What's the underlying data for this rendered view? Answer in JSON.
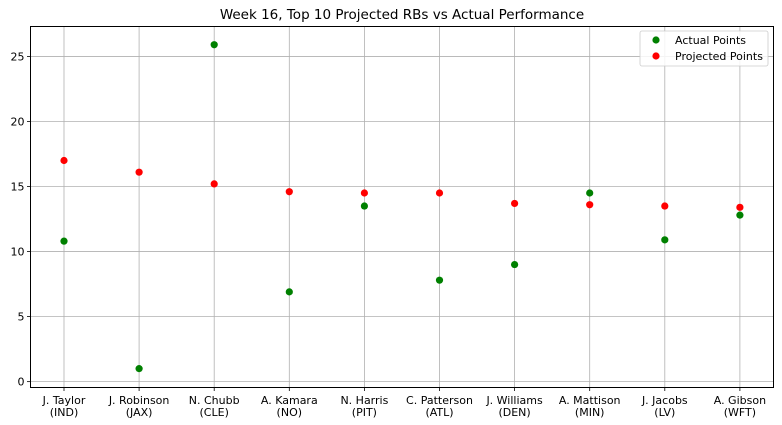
{
  "chart_data": {
    "type": "scatter",
    "title": "Week 16, Top 10 Projected RBs vs Actual Performance",
    "xlabel": "",
    "ylabel": "",
    "categories": [
      [
        "J. Taylor",
        "(IND)"
      ],
      [
        "J. Robinson",
        "(JAX)"
      ],
      [
        "N. Chubb",
        "(CLE)"
      ],
      [
        "A. Kamara",
        "(NO)"
      ],
      [
        "N. Harris",
        "(PIT)"
      ],
      [
        "C. Patterson",
        "(ATL)"
      ],
      [
        "J. Williams",
        "(DEN)"
      ],
      [
        "A. Mattison",
        "(MIN)"
      ],
      [
        "J. Jacobs",
        "(LV)"
      ],
      [
        "A. Gibson",
        "(WFT)"
      ]
    ],
    "series": [
      {
        "name": "Actual Points",
        "color": "#008000",
        "values": [
          10.8,
          1.0,
          25.9,
          6.9,
          13.5,
          7.8,
          9.0,
          14.5,
          10.9,
          12.8
        ]
      },
      {
        "name": "Projected Points",
        "color": "#ff0000",
        "values": [
          17.0,
          16.1,
          15.2,
          14.6,
          14.5,
          14.5,
          13.7,
          13.6,
          13.5,
          13.4
        ]
      }
    ],
    "ylim": [
      -0.45,
      27.3
    ],
    "yticks": [
      0,
      5,
      10,
      15,
      20,
      25
    ],
    "grid": true,
    "legend": "top-right"
  }
}
